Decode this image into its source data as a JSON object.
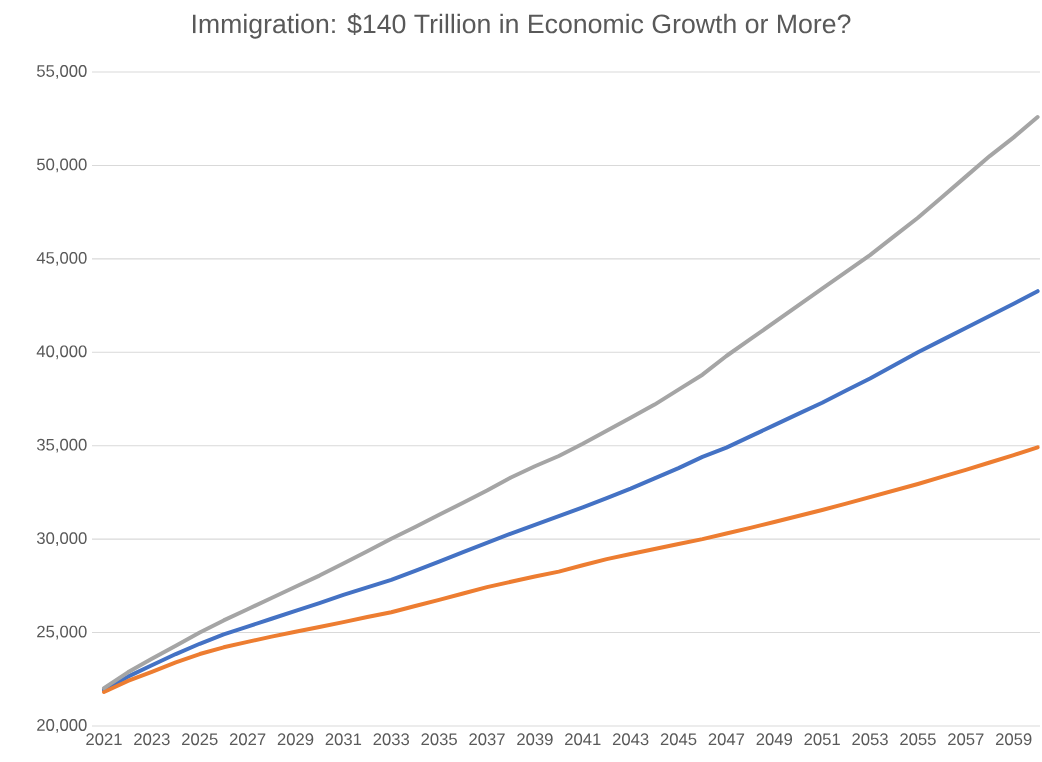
{
  "chart_data": {
    "type": "line",
    "title": "Immigration:  $140 Trillion in Economic Growth or More?",
    "categories": [
      "2021",
      null,
      "2023",
      null,
      "2025",
      null,
      "2027",
      null,
      "2029",
      null,
      "2031",
      null,
      "2033",
      null,
      "2035",
      null,
      "2037",
      null,
      "2039",
      null,
      "2041",
      null,
      "2043",
      null,
      "2045",
      null,
      "2047",
      null,
      "2049",
      null,
      "2051",
      null,
      "2053",
      null,
      "2055",
      null,
      "2057",
      null,
      "2059",
      null
    ],
    "series": [
      {
        "color": "#4472c4",
        "values": [
          21930,
          22640,
          23250,
          23850,
          24400,
          24900,
          25320,
          25740,
          26160,
          26580,
          27020,
          27420,
          27820,
          28300,
          28800,
          29300,
          29800,
          30300,
          30760,
          31230,
          31700,
          32200,
          32700,
          33250,
          33800,
          34400,
          34900,
          35500,
          36100,
          36700,
          37300,
          37950,
          38600,
          39300,
          40000,
          40650,
          41300,
          41950,
          42600,
          43270
        ]
      },
      {
        "color": "#ed7d31",
        "values": [
          21820,
          22410,
          22900,
          23410,
          23850,
          24210,
          24500,
          24780,
          25040,
          25300,
          25560,
          25830,
          26090,
          26420,
          26750,
          27090,
          27430,
          27720,
          28000,
          28260,
          28600,
          28930,
          29200,
          29470,
          29740,
          30000,
          30300,
          30600,
          30920,
          31240,
          31560,
          31900,
          32250,
          32600,
          32950,
          33330,
          33710,
          34100,
          34500,
          34910
        ]
      },
      {
        "color": "#a5a5a5",
        "values": [
          22030,
          22870,
          23600,
          24300,
          25000,
          25650,
          26250,
          26850,
          27450,
          28050,
          28700,
          29350,
          30020,
          30650,
          31300,
          31950,
          32600,
          33300,
          33900,
          34450,
          35100,
          35800,
          36500,
          37200,
          38000,
          38800,
          39800,
          40700,
          41600,
          42500,
          43400,
          44300,
          45200,
          46200,
          47200,
          48300,
          49400,
          50500,
          51500,
          52590
        ]
      }
    ],
    "ylim": [
      20000,
      55000
    ],
    "yticks": [
      {
        "value": 20000,
        "label": "20,000"
      },
      {
        "value": 25000,
        "label": "25,000"
      },
      {
        "value": 30000,
        "label": "30,000"
      },
      {
        "value": 35000,
        "label": "35,000"
      },
      {
        "value": 40000,
        "label": "40,000"
      },
      {
        "value": 45000,
        "label": "45,000"
      },
      {
        "value": 50000,
        "label": "50,000"
      },
      {
        "value": 55000,
        "label": "55,000"
      }
    ],
    "grid": "y",
    "marker": "none",
    "line_style": "solid"
  }
}
